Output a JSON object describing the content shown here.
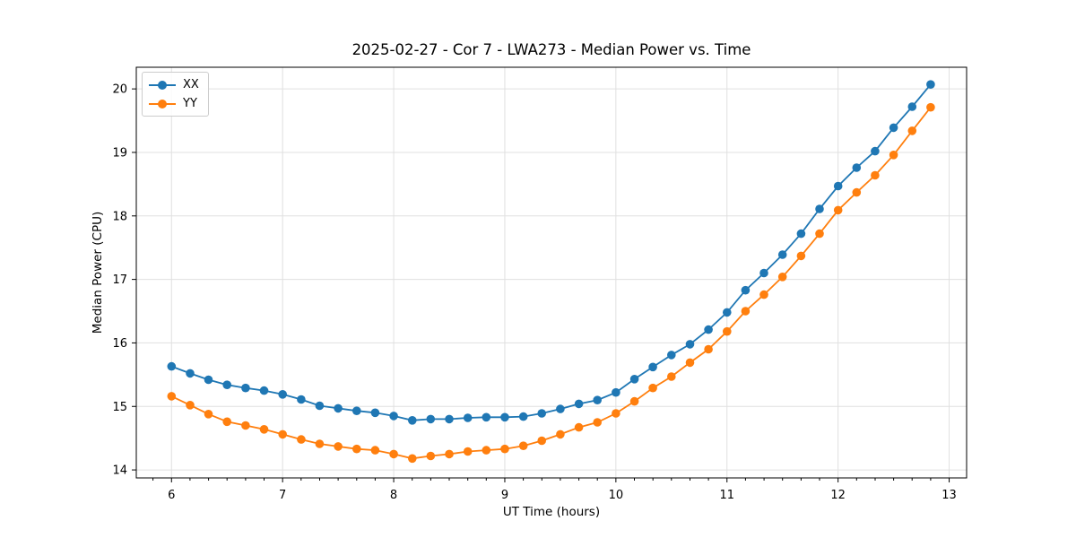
{
  "chart_data": {
    "type": "line",
    "title": "2025-02-27 - Cor 7 - LWA273 - Median Power vs. Time",
    "xlabel": "UT Time (hours)",
    "ylabel": "Median Power (CPU)",
    "xlim": [
      5.683,
      13.157
    ],
    "ylim": [
      13.874,
      20.341
    ],
    "xticks": [
      6,
      7,
      8,
      9,
      10,
      11,
      12,
      13
    ],
    "yticks": [
      14,
      15,
      16,
      17,
      18,
      19,
      20
    ],
    "x_minor_step_hours": 0.1667,
    "grid": true,
    "grid_color": "#e0e0e0",
    "legend_position": "upper-left",
    "x": [
      6.0,
      6.167,
      6.333,
      6.5,
      6.667,
      6.833,
      7.0,
      7.167,
      7.333,
      7.5,
      7.667,
      7.833,
      8.0,
      8.167,
      8.333,
      8.5,
      8.667,
      8.833,
      9.0,
      9.167,
      9.333,
      9.5,
      9.667,
      9.833,
      10.0,
      10.167,
      10.333,
      10.5,
      10.667,
      10.833,
      11.0,
      11.167,
      11.333,
      11.5,
      11.667,
      11.833,
      12.0,
      12.167,
      12.333,
      12.5,
      12.667,
      12.833
    ],
    "series": [
      {
        "name": "XX",
        "color": "#1f77b4",
        "values": [
          15.63,
          15.52,
          15.42,
          15.34,
          15.29,
          15.25,
          15.19,
          15.11,
          15.01,
          14.97,
          14.93,
          14.9,
          14.85,
          14.78,
          14.8,
          14.8,
          14.82,
          14.83,
          14.83,
          14.84,
          14.89,
          14.96,
          15.04,
          15.1,
          15.22,
          15.43,
          15.62,
          15.81,
          15.98,
          16.21,
          16.48,
          16.83,
          17.1,
          17.39,
          17.72,
          18.11,
          18.47,
          18.76,
          19.02,
          19.39,
          19.72,
          20.07
        ]
      },
      {
        "name": "YY",
        "color": "#ff7f0e",
        "values": [
          15.16,
          15.02,
          14.88,
          14.76,
          14.7,
          14.64,
          14.56,
          14.48,
          14.41,
          14.37,
          14.33,
          14.31,
          14.25,
          14.18,
          14.22,
          14.25,
          14.29,
          14.31,
          14.33,
          14.38,
          14.46,
          14.56,
          14.67,
          14.75,
          14.89,
          15.08,
          15.29,
          15.47,
          15.69,
          15.9,
          16.18,
          16.5,
          16.76,
          17.04,
          17.37,
          17.72,
          18.09,
          18.37,
          18.64,
          18.96,
          19.34,
          19.71
        ]
      }
    ]
  }
}
